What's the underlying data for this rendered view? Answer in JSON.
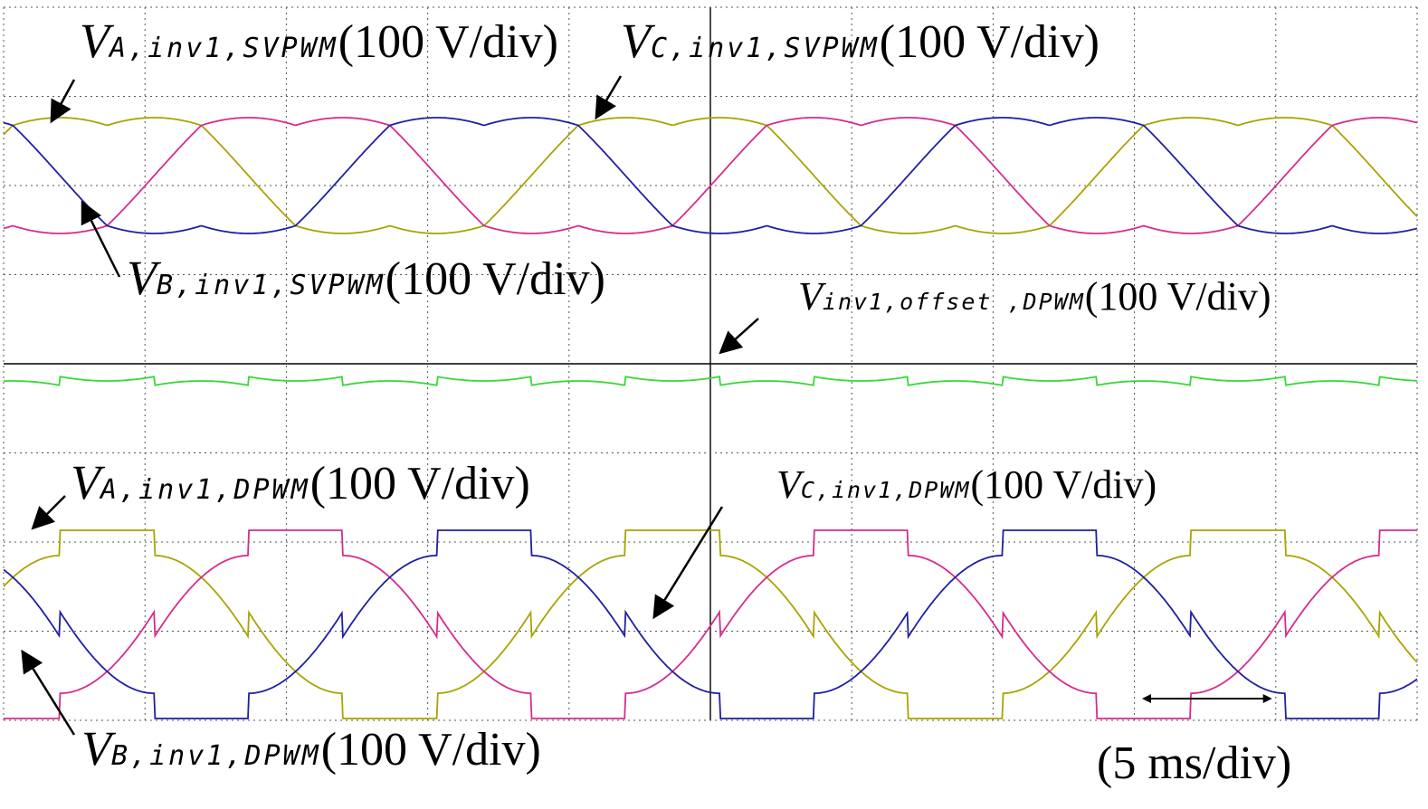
{
  "chart_data": {
    "type": "line",
    "grid": true,
    "time_per_div_ms": 5,
    "horizontal_divisions": 10,
    "volts_per_div": 100,
    "labels": {
      "va_svpwm": {
        "name": "V",
        "sub": "A,inv1,SVPWM",
        "unit": "(100 V/div)"
      },
      "vc_svpwm": {
        "name": "V",
        "sub": "C,inv1,SVPWM",
        "unit": "(100 V/div)"
      },
      "vb_svpwm": {
        "name": "V",
        "sub": "B,inv1,SVPWM",
        "unit": "(100 V/div)"
      },
      "voffset": {
        "name": "V",
        "sub": "inv1,offset ,DPWM",
        "unit": "(100 V/div)"
      },
      "va_dpwm": {
        "name": "V",
        "sub": "A,inv1,DPWM",
        "unit": "(100 V/div)"
      },
      "vc_dpwm": {
        "name": "V",
        "sub": "C,inv1,DPWM",
        "unit": "(100 V/div)"
      },
      "vb_dpwm": {
        "name": "V",
        "sub": "B,inv1,DPWM",
        "unit": "(100 V/div)"
      },
      "timescale": "(5 ms/div)"
    },
    "series": [
      {
        "key": "va_svpwm",
        "color": "#a8a400",
        "phase_deg": 0,
        "group": "svpwm"
      },
      {
        "key": "vb_svpwm",
        "color": "#d62c8c",
        "phase_deg": -120,
        "group": "svpwm"
      },
      {
        "key": "vc_svpwm",
        "color": "#1f1fa3",
        "phase_deg": 120,
        "group": "svpwm"
      },
      {
        "key": "voffset",
        "color": "#36d936",
        "group": "offset"
      },
      {
        "key": "va_dpwm",
        "color": "#a8a400",
        "phase_deg": 0,
        "group": "dpwm"
      },
      {
        "key": "vb_dpwm",
        "color": "#d62c8c",
        "phase_deg": -120,
        "group": "dpwm"
      },
      {
        "key": "vc_dpwm",
        "color": "#1f1fa3",
        "phase_deg": 120,
        "group": "dpwm"
      }
    ]
  }
}
